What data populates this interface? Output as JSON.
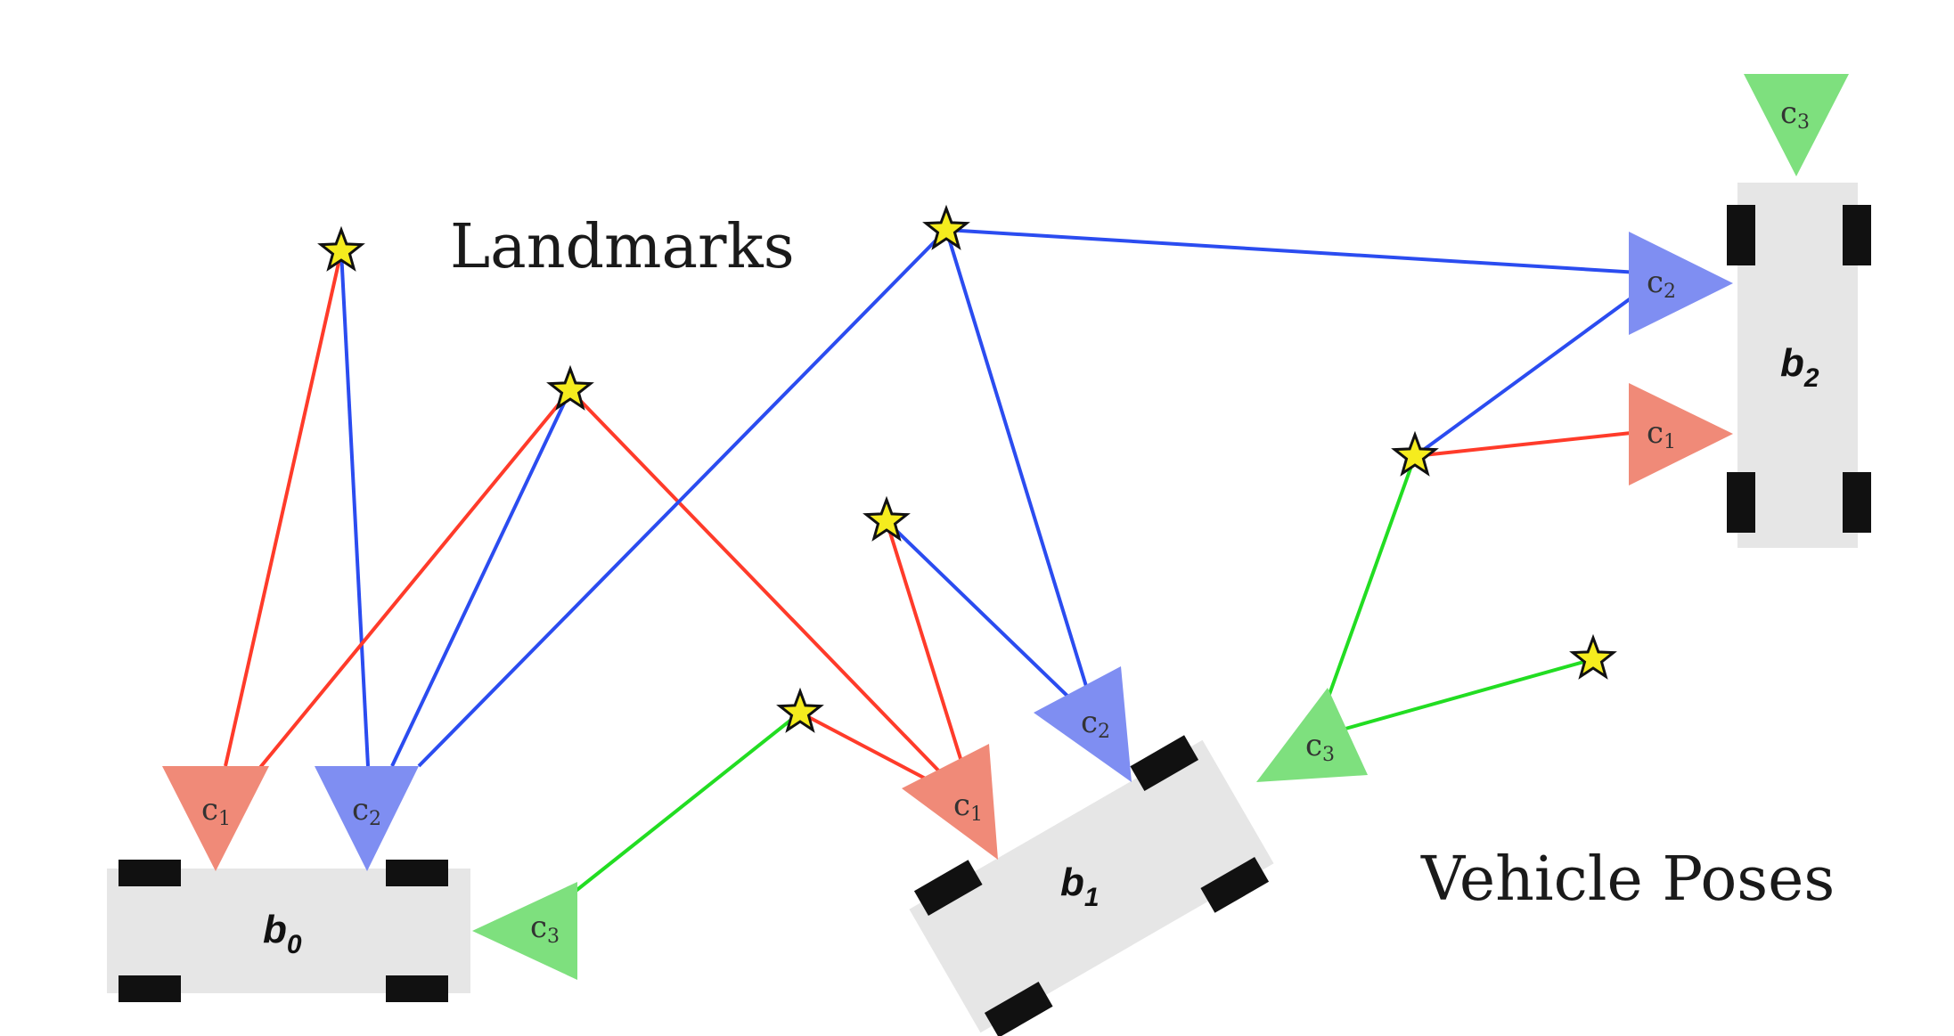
{
  "labels": {
    "landmarks": "Landmarks",
    "vehicle_poses": "Vehicle Poses"
  },
  "poses": [
    {
      "id": "b0",
      "base": "b",
      "sub": "0"
    },
    {
      "id": "b1",
      "base": "b",
      "sub": "1"
    },
    {
      "id": "b2",
      "base": "b",
      "sub": "2"
    }
  ],
  "cameras": [
    {
      "id": "b0-c1",
      "pose": "b0",
      "base": "c",
      "sub": "1",
      "color": "#f08a78"
    },
    {
      "id": "b0-c2",
      "pose": "b0",
      "base": "c",
      "sub": "2",
      "color": "#7f8ef2"
    },
    {
      "id": "b0-c3",
      "pose": "b0",
      "base": "c",
      "sub": "3",
      "color": "#7ee07e"
    },
    {
      "id": "b1-c1",
      "pose": "b1",
      "base": "c",
      "sub": "1",
      "color": "#f08a78"
    },
    {
      "id": "b1-c2",
      "pose": "b1",
      "base": "c",
      "sub": "2",
      "color": "#7f8ef2"
    },
    {
      "id": "b1-c3",
      "pose": "b1",
      "base": "c",
      "sub": "3",
      "color": "#7ee07e"
    },
    {
      "id": "b2-c1",
      "pose": "b2",
      "base": "c",
      "sub": "1",
      "color": "#f08a78"
    },
    {
      "id": "b2-c2",
      "pose": "b2",
      "base": "c",
      "sub": "2",
      "color": "#7f8ef2"
    },
    {
      "id": "b2-c3",
      "pose": "b2",
      "base": "c",
      "sub": "3",
      "color": "#7ee07e"
    }
  ],
  "landmarks": [
    "L1",
    "L2",
    "L3",
    "L4",
    "L5",
    "L6",
    "L7",
    "L8"
  ],
  "observations": [
    {
      "landmark": "L1",
      "camera": "b0-c1"
    },
    {
      "landmark": "L1",
      "camera": "b0-c2"
    },
    {
      "landmark": "L2",
      "camera": "b0-c1"
    },
    {
      "landmark": "L2",
      "camera": "b0-c2"
    },
    {
      "landmark": "L2",
      "camera": "b1-c1"
    },
    {
      "landmark": "L3",
      "camera": "b0-c2"
    },
    {
      "landmark": "L3",
      "camera": "b1-c2"
    },
    {
      "landmark": "L3",
      "camera": "b2-c2"
    },
    {
      "landmark": "L4",
      "camera": "b1-c1"
    },
    {
      "landmark": "L4",
      "camera": "b1-c2"
    },
    {
      "landmark": "L5",
      "camera": "b0-c3"
    },
    {
      "landmark": "L5",
      "camera": "b1-c1"
    },
    {
      "landmark": "L6",
      "camera": "b2-c1"
    },
    {
      "landmark": "L6",
      "camera": "b2-c2"
    },
    {
      "landmark": "L6",
      "camera": "b1-c3"
    },
    {
      "landmark": "L7",
      "camera": "b1-c3"
    }
  ],
  "colors": {
    "camera_1": "#f08a78",
    "camera_2": "#7f8ef2",
    "camera_3": "#7ee07e",
    "line_1": "#ff3b2a",
    "line_2": "#2b4cf0",
    "line_3": "#22dd22",
    "vehicle_body": "#e6e6e6",
    "wheel": "#111111",
    "landmark_fill": "#f5ec1e",
    "landmark_stroke": "#111111"
  },
  "icons": {
    "landmark": "star-icon",
    "camera": "triangle-icon",
    "vehicle": "car-top-view-icon"
  }
}
